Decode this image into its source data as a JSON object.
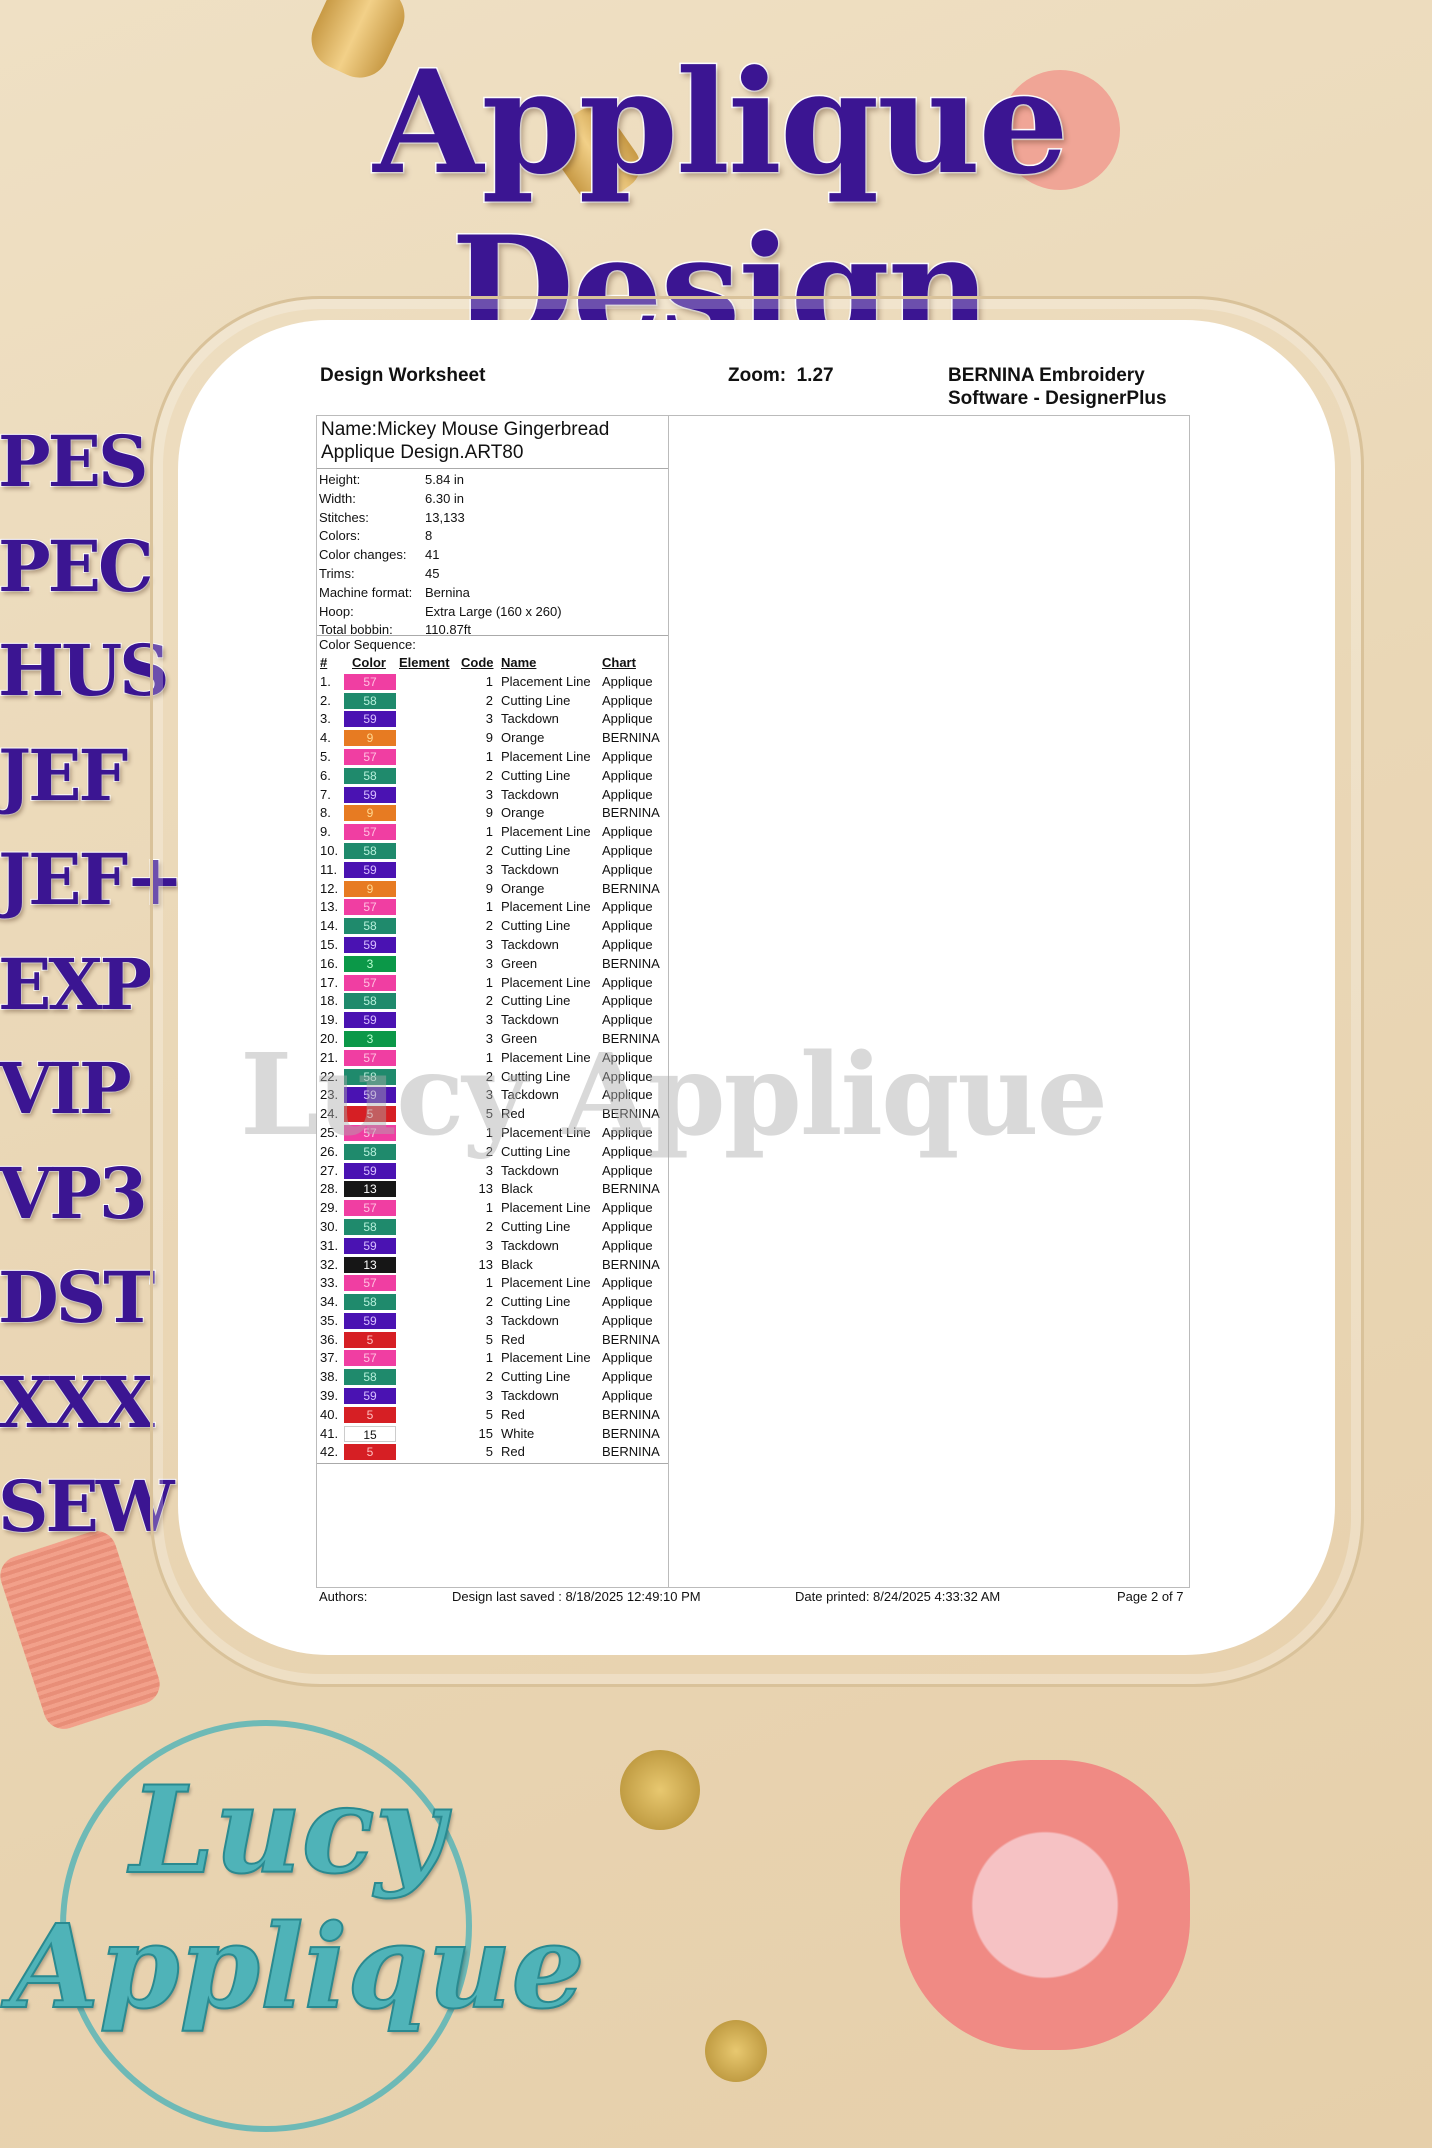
{
  "banner": {
    "title": "Applique Design",
    "formats": [
      "PES",
      "PEC",
      "HUS",
      "JEF",
      "JEF+",
      "EXP",
      "VIP",
      "VP3",
      "DST",
      "XXX",
      "SEW"
    ],
    "watermark": "Lucy Applique",
    "logo": {
      "line1": "Lucy",
      "line2": "Applique"
    }
  },
  "worksheet": {
    "title": "Design Worksheet",
    "zoom_label": "Zoom:",
    "zoom_value": "1.27",
    "software_line1": "BERNINA Embroidery",
    "software_line2": "Software - DesignerPlus",
    "name_line1": "Name:Mickey Mouse Gingerbread",
    "name_line2": "Applique Design.ART80",
    "properties": [
      {
        "label": "Height:",
        "value": "5.84 in"
      },
      {
        "label": "Width:",
        "value": "6.30 in"
      },
      {
        "label": "Stitches:",
        "value": "13,133"
      },
      {
        "label": "Colors:",
        "value": "8"
      },
      {
        "label": "Color changes:",
        "value": "41"
      },
      {
        "label": "Trims:",
        "value": "45"
      },
      {
        "label": "Machine format:",
        "value": "Bernina"
      },
      {
        "label": "Hoop:",
        "value": "Extra Large (160 x 260)"
      },
      {
        "label": "Total bobbin:",
        "value": "110.87ft"
      }
    ],
    "sequence_label": "Color Sequence:",
    "columns": {
      "num": "#",
      "color": "Color",
      "element": "Element",
      "code": "Code",
      "name": "Name",
      "chart": "Chart"
    },
    "swatch_colors": {
      "57": "#f03ea2",
      "58": "#1f8a6c",
      "59": "#4a12b2",
      "9": "#e77b22",
      "3": "#0b9848",
      "5": "#d61f24",
      "13": "#161616",
      "15": "#ffffff"
    },
    "rows": [
      [
        "1.",
        "57",
        "1",
        "Placement Line",
        "Applique"
      ],
      [
        "2.",
        "58",
        "2",
        "Cutting Line",
        "Applique"
      ],
      [
        "3.",
        "59",
        "3",
        "Tackdown",
        "Applique"
      ],
      [
        "4.",
        "9",
        "9",
        "Orange",
        "BERNINA"
      ],
      [
        "5.",
        "57",
        "1",
        "Placement Line",
        "Applique"
      ],
      [
        "6.",
        "58",
        "2",
        "Cutting Line",
        "Applique"
      ],
      [
        "7.",
        "59",
        "3",
        "Tackdown",
        "Applique"
      ],
      [
        "8.",
        "9",
        "9",
        "Orange",
        "BERNINA"
      ],
      [
        "9.",
        "57",
        "1",
        "Placement Line",
        "Applique"
      ],
      [
        "10.",
        "58",
        "2",
        "Cutting Line",
        "Applique"
      ],
      [
        "11.",
        "59",
        "3",
        "Tackdown",
        "Applique"
      ],
      [
        "12.",
        "9",
        "9",
        "Orange",
        "BERNINA"
      ],
      [
        "13.",
        "57",
        "1",
        "Placement Line",
        "Applique"
      ],
      [
        "14.",
        "58",
        "2",
        "Cutting Line",
        "Applique"
      ],
      [
        "15.",
        "59",
        "3",
        "Tackdown",
        "Applique"
      ],
      [
        "16.",
        "3",
        "3",
        "Green",
        "BERNINA"
      ],
      [
        "17.",
        "57",
        "1",
        "Placement Line",
        "Applique"
      ],
      [
        "18.",
        "58",
        "2",
        "Cutting Line",
        "Applique"
      ],
      [
        "19.",
        "59",
        "3",
        "Tackdown",
        "Applique"
      ],
      [
        "20.",
        "3",
        "3",
        "Green",
        "BERNINA"
      ],
      [
        "21.",
        "57",
        "1",
        "Placement Line",
        "Applique"
      ],
      [
        "22.",
        "58",
        "2",
        "Cutting Line",
        "Applique"
      ],
      [
        "23.",
        "59",
        "3",
        "Tackdown",
        "Applique"
      ],
      [
        "24.",
        "5",
        "5",
        "Red",
        "BERNINA"
      ],
      [
        "25.",
        "57",
        "1",
        "Placement Line",
        "Applique"
      ],
      [
        "26.",
        "58",
        "2",
        "Cutting Line",
        "Applique"
      ],
      [
        "27.",
        "59",
        "3",
        "Tackdown",
        "Applique"
      ],
      [
        "28.",
        "13",
        "13",
        "Black",
        "BERNINA"
      ],
      [
        "29.",
        "57",
        "1",
        "Placement Line",
        "Applique"
      ],
      [
        "30.",
        "58",
        "2",
        "Cutting Line",
        "Applique"
      ],
      [
        "31.",
        "59",
        "3",
        "Tackdown",
        "Applique"
      ],
      [
        "32.",
        "13",
        "13",
        "Black",
        "BERNINA"
      ],
      [
        "33.",
        "57",
        "1",
        "Placement Line",
        "Applique"
      ],
      [
        "34.",
        "58",
        "2",
        "Cutting Line",
        "Applique"
      ],
      [
        "35.",
        "59",
        "3",
        "Tackdown",
        "Applique"
      ],
      [
        "36.",
        "5",
        "5",
        "Red",
        "BERNINA"
      ],
      [
        "37.",
        "57",
        "1",
        "Placement Line",
        "Applique"
      ],
      [
        "38.",
        "58",
        "2",
        "Cutting Line",
        "Applique"
      ],
      [
        "39.",
        "59",
        "3",
        "Tackdown",
        "Applique"
      ],
      [
        "40.",
        "5",
        "5",
        "Red",
        "BERNINA"
      ],
      [
        "41.",
        "15",
        "15",
        "White",
        "BERNINA"
      ],
      [
        "42.",
        "5",
        "5",
        "Red",
        "BERNINA"
      ]
    ],
    "footer": {
      "authors": "Authors:",
      "last_saved": "Design last saved : 8/18/2025 12:49:10 PM",
      "date_printed": "Date printed: 8/24/2025 4:33:32 AM",
      "page": "Page 2 of 7"
    }
  }
}
